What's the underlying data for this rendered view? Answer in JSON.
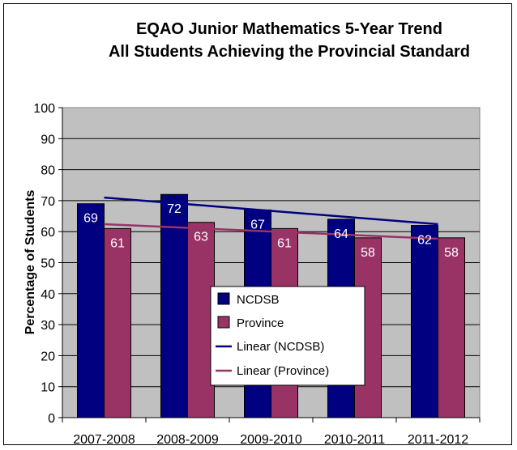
{
  "chart_data": {
    "type": "bar",
    "title": "EQAO Junior Mathematics 5-Year Trend",
    "subtitle": "All Students Achieving the Provincial Standard",
    "xlabel": "",
    "ylabel": "Percentage of Students",
    "ylim": [
      0,
      100
    ],
    "yticks": [
      0,
      10,
      20,
      30,
      40,
      50,
      60,
      70,
      80,
      90,
      100
    ],
    "grid": true,
    "legend_position": "bottom-center-inside",
    "categories": [
      "2007-2008",
      "2008-2009",
      "2009-2010",
      "2010-2011",
      "2011-2012"
    ],
    "series": [
      {
        "name": "NCDSB",
        "values": [
          69,
          72,
          67,
          64,
          62
        ],
        "color": "#000080"
      },
      {
        "name": "Province",
        "values": [
          61,
          63,
          61,
          58,
          58
        ],
        "color": "#993366"
      }
    ],
    "trendlines": [
      {
        "name": "Linear (NCDSB)",
        "start": 71.0,
        "end": 62.4,
        "color": "#000080"
      },
      {
        "name": "Linear (Province)",
        "start": 62.4,
        "end": 57.7,
        "color": "#993366"
      }
    ],
    "plot_background": "#c0c0c0"
  }
}
